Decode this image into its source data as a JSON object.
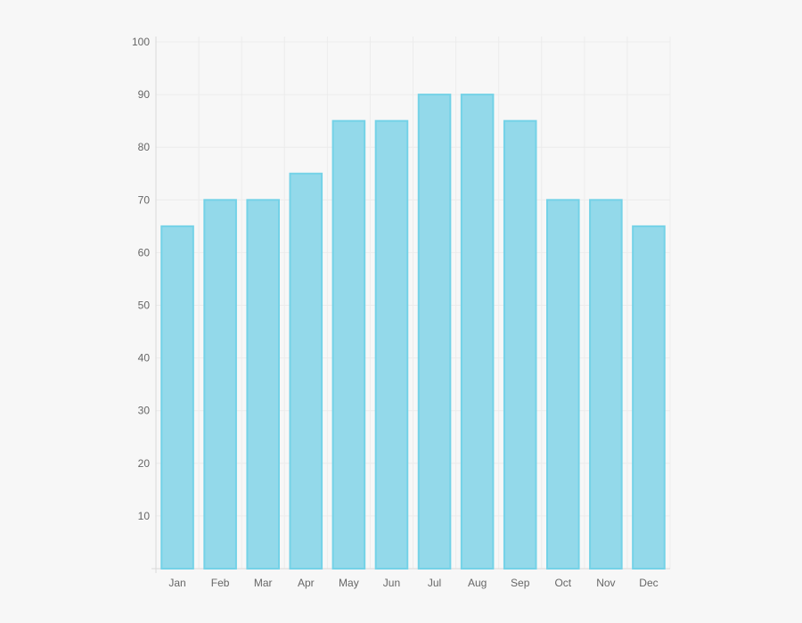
{
  "chart_data": {
    "type": "bar",
    "categories": [
      "Jan",
      "Feb",
      "Mar",
      "Apr",
      "May",
      "Jun",
      "Jul",
      "Aug",
      "Sep",
      "Oct",
      "Nov",
      "Dec"
    ],
    "values": [
      65,
      70,
      70,
      75,
      85,
      85,
      90,
      90,
      85,
      70,
      70,
      65
    ],
    "ylim": [
      0,
      100
    ],
    "yticks": [
      10,
      20,
      30,
      40,
      50,
      60,
      70,
      80,
      90,
      100
    ],
    "grid": true,
    "colors": {
      "bar_fill": "#93d9ea",
      "bar_stroke": "#74d2e7",
      "grid": "#ececec",
      "axis": "#d9d9d9"
    }
  }
}
